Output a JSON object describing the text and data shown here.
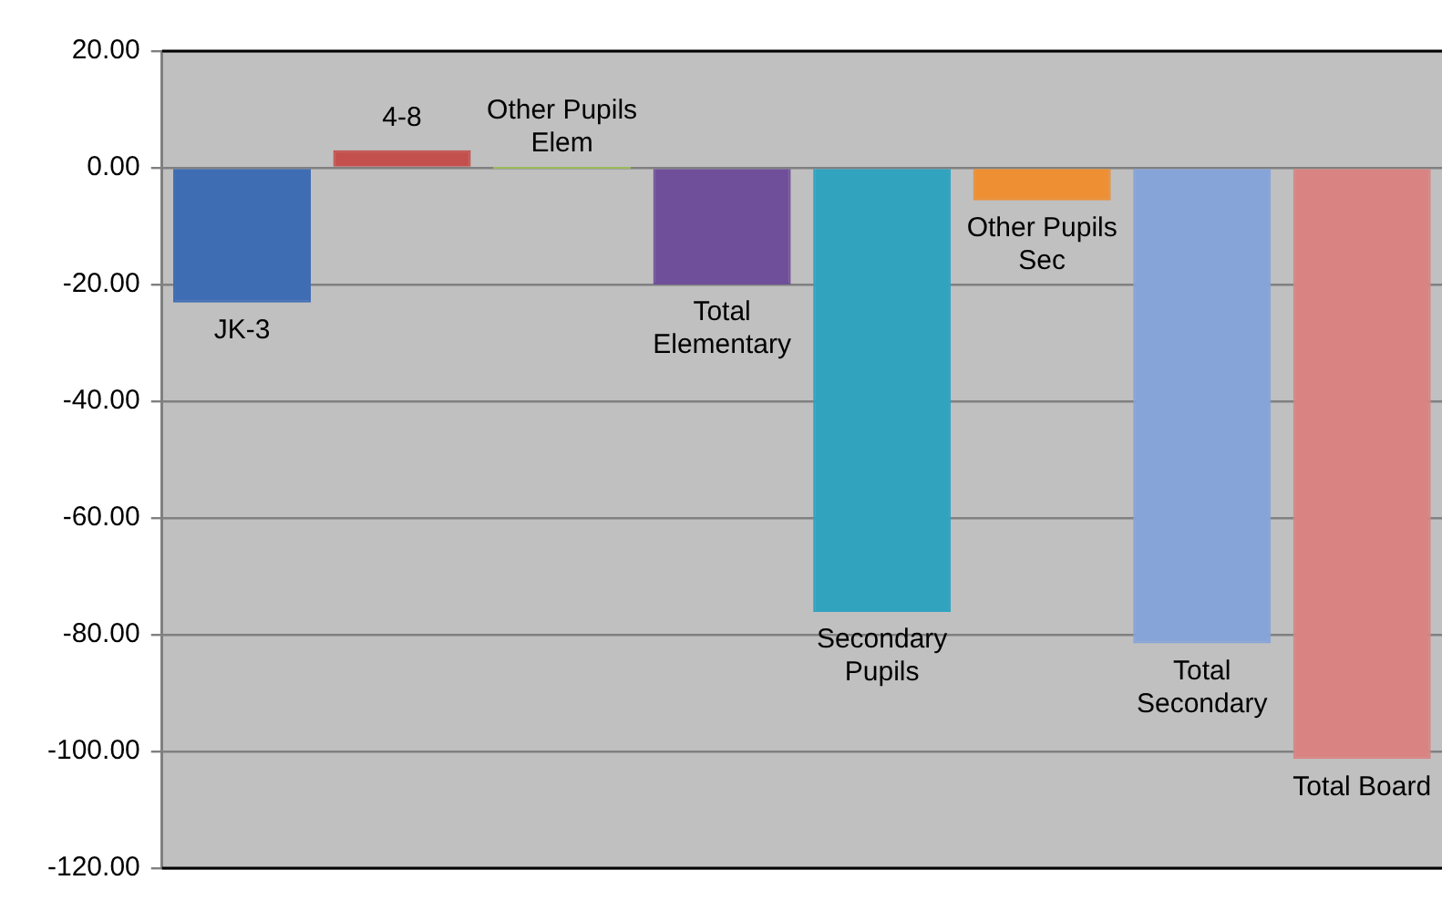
{
  "chart_data": {
    "type": "bar",
    "categories": [
      "JK-3",
      "4-8",
      "Other Pupils Elem",
      "Total Elementary",
      "Secondary Pupils",
      "Other Pupils Sec",
      "Total Secondary",
      "Total Board"
    ],
    "values": [
      -23.1,
      3.0,
      0,
      -20.0,
      -76.1,
      -5.6,
      -81.5,
      -101.3
    ],
    "colors": [
      "#3e6db4",
      "#c4504d",
      "#9bbb59",
      "#6f4f9a",
      "#31a3bf",
      "#ee8f33",
      "#86a4d8",
      "#d98482"
    ],
    "ylim": [
      -120,
      20
    ],
    "yticks": [
      {
        "value": 20,
        "label": "20.00"
      },
      {
        "value": 0,
        "label": "0.00"
      },
      {
        "value": -20,
        "label": "-20.00"
      },
      {
        "value": -40,
        "label": "-40.00"
      },
      {
        "value": -60,
        "label": "-60.00"
      },
      {
        "value": -80,
        "label": "-80.00"
      },
      {
        "value": -100,
        "label": "-100.00"
      },
      {
        "value": -120,
        "label": "-120.00"
      }
    ],
    "grid": "y",
    "tick_labels": "y"
  }
}
